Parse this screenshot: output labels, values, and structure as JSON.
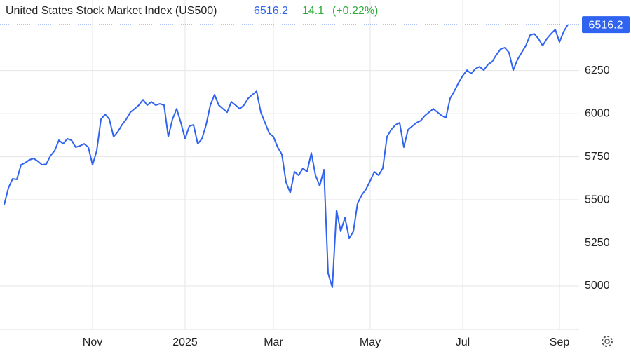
{
  "header": {
    "title": "United States Stock Market Index (US500)",
    "price": "6516.2",
    "change": "14.1",
    "change_percent": "(+0.22%)"
  },
  "chart_data": {
    "type": "line",
    "categories": [
      null,
      null,
      null,
      null,
      null,
      null,
      null,
      null,
      null,
      null,
      null,
      null,
      null,
      null,
      null,
      null,
      null,
      null,
      null,
      null,
      null,
      "Nov",
      null,
      null,
      null,
      null,
      null,
      null,
      null,
      null,
      null,
      null,
      null,
      null,
      null,
      null,
      null,
      null,
      null,
      null,
      null,
      null,
      null,
      "2025",
      null,
      null,
      null,
      null,
      null,
      null,
      null,
      null,
      null,
      null,
      null,
      null,
      null,
      null,
      null,
      null,
      null,
      null,
      null,
      null,
      "Mar",
      null,
      null,
      null,
      null,
      null,
      null,
      null,
      null,
      null,
      null,
      null,
      null,
      null,
      null,
      null,
      null,
      null,
      null,
      null,
      null,
      null,
      null,
      "May",
      null,
      null,
      null,
      null,
      null,
      null,
      null,
      null,
      null,
      null,
      null,
      null,
      null,
      null,
      null,
      null,
      null,
      null,
      null,
      null,
      null,
      "Jul",
      null,
      null,
      null,
      null,
      null,
      null,
      null,
      null,
      null,
      null,
      null,
      null,
      null,
      null,
      null,
      null,
      null,
      null,
      null,
      null,
      null,
      null,
      "Sep",
      null,
      null
    ],
    "values": [
      5472,
      5569,
      5622,
      5618,
      5703,
      5715,
      5732,
      5740,
      5724,
      5703,
      5707,
      5756,
      5785,
      5846,
      5825,
      5854,
      5846,
      5805,
      5813,
      5825,
      5805,
      5703,
      5785,
      5967,
      5996,
      5967,
      5866,
      5894,
      5935,
      5967,
      6008,
      6028,
      6049,
      6081,
      6049,
      6069,
      6049,
      6057,
      6049,
      5866,
      5967,
      6028,
      5947,
      5854,
      5927,
      5935,
      5825,
      5854,
      5935,
      6049,
      6110,
      6049,
      6028,
      6008,
      6069,
      6049,
      6028,
      6049,
      6089,
      6110,
      6130,
      6008,
      5947,
      5886,
      5866,
      5805,
      5764,
      5602,
      5541,
      5663,
      5642,
      5683,
      5663,
      5772,
      5642,
      5581,
      5675,
      5073,
      4992,
      5439,
      5317,
      5398,
      5276,
      5317,
      5480,
      5528,
      5561,
      5610,
      5663,
      5642,
      5683,
      5866,
      5907,
      5935,
      5947,
      5805,
      5907,
      5927,
      5947,
      5959,
      5988,
      6008,
      6028,
      6008,
      5988,
      5976,
      6089,
      6130,
      6179,
      6220,
      6252,
      6232,
      6260,
      6272,
      6252,
      6285,
      6301,
      6341,
      6374,
      6382,
      6354,
      6252,
      6313,
      6354,
      6394,
      6455,
      6463,
      6435,
      6394,
      6435,
      6463,
      6488,
      6415,
      6476,
      6516.2
    ],
    "color": "#2f63f0",
    "ylim": [
      4748,
      6659
    ],
    "yticks": [
      5000,
      5250,
      5500,
      5750,
      6000,
      6250
    ],
    "grid": true
  }
}
